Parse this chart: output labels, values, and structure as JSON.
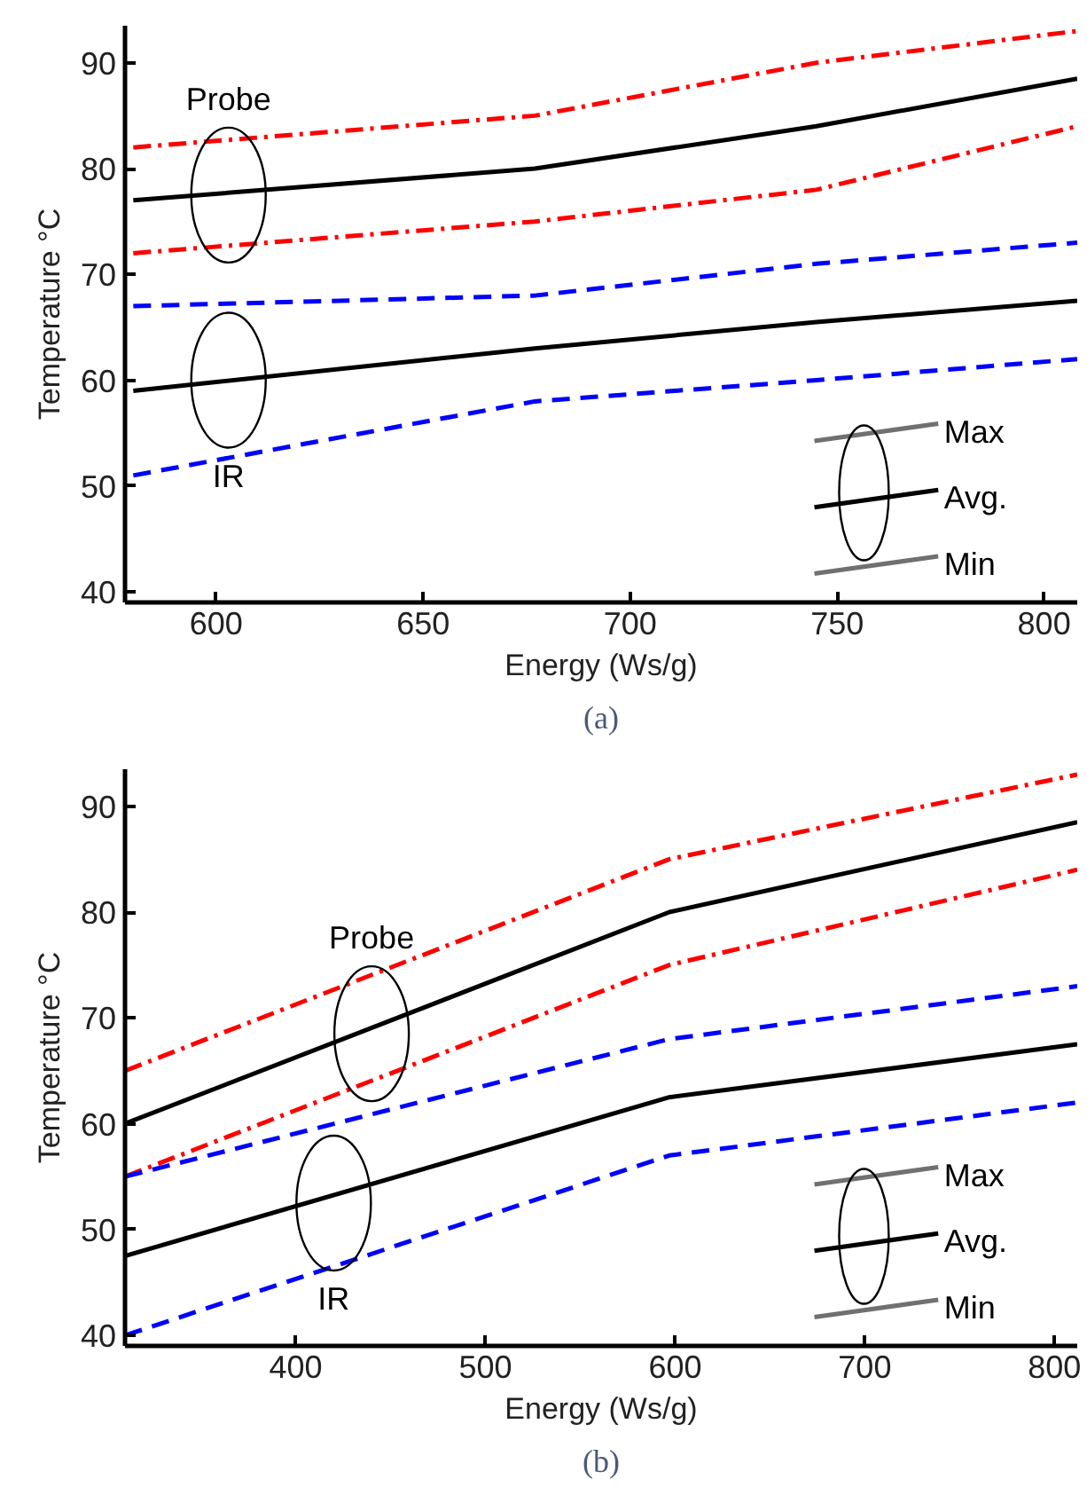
{
  "chart_data": [
    {
      "type": "line",
      "title": "(a)",
      "xlabel": "Energy (Ws/g)",
      "ylabel": "Temperature °C",
      "x": [
        580,
        677,
        745,
        808
      ],
      "series": [
        {
          "color": "#ff0000",
          "line_style": "dashdot",
          "values": [
            82,
            85,
            90,
            93
          ]
        },
        {
          "color": "#000000",
          "line_style": "solid",
          "values": [
            77,
            80,
            84,
            88.5
          ]
        },
        {
          "color": "#ff0000",
          "line_style": "dashdot",
          "values": [
            72,
            75,
            78,
            84
          ]
        },
        {
          "color": "#0000ff",
          "line_style": "dashed",
          "values": [
            67,
            68,
            71,
            73
          ]
        },
        {
          "color": "#000000",
          "line_style": "solid",
          "values": [
            59,
            63,
            65.5,
            67.5
          ]
        },
        {
          "color": "#0000ff",
          "line_style": "dashed",
          "values": [
            51,
            58,
            60,
            62
          ]
        }
      ],
      "annotations": [
        {
          "text": "Probe",
          "x": 603,
          "y": 77.5
        },
        {
          "text": "IR",
          "x": 603,
          "y": 60
        },
        "Max",
        "Avg.",
        "Min"
      ],
      "xlim": [
        578,
        808
      ],
      "ylim": [
        39,
        93.5
      ],
      "xticks": [
        600,
        650,
        700,
        750,
        800
      ],
      "yticks": [
        40,
        50,
        60,
        70,
        80,
        90
      ],
      "grid": false,
      "marker": "none"
    },
    {
      "type": "line",
      "title": "(b)",
      "xlabel": "Energy (Ws/g)",
      "ylabel": "Temperature °C",
      "x": [
        310,
        597,
        812
      ],
      "series": [
        {
          "color": "#ff0000",
          "line_style": "dashdot",
          "values": [
            65,
            85,
            93
          ]
        },
        {
          "color": "#000000",
          "line_style": "solid",
          "values": [
            60,
            80,
            88.5
          ]
        },
        {
          "color": "#ff0000",
          "line_style": "dashdot",
          "values": [
            55,
            75,
            84
          ]
        },
        {
          "color": "#0000ff",
          "line_style": "dashed",
          "values": [
            55,
            68,
            73
          ]
        },
        {
          "color": "#000000",
          "line_style": "solid",
          "values": [
            47.5,
            62.5,
            67.5
          ]
        },
        {
          "color": "#0000ff",
          "line_style": "dashed",
          "values": [
            40,
            57,
            62
          ]
        }
      ],
      "annotations": [
        {
          "text": "Probe",
          "x": 440,
          "y": 68.5
        },
        {
          "text": "IR",
          "x": 420,
          "y": 52.5
        },
        "Max",
        "Avg.",
        "Min"
      ],
      "xlim": [
        310,
        812
      ],
      "ylim": [
        39,
        93.5
      ],
      "xticks": [
        400,
        500,
        600,
        700,
        800
      ],
      "yticks": [
        40,
        50,
        60,
        70,
        80,
        90
      ],
      "grid": false,
      "marker": "none"
    }
  ]
}
